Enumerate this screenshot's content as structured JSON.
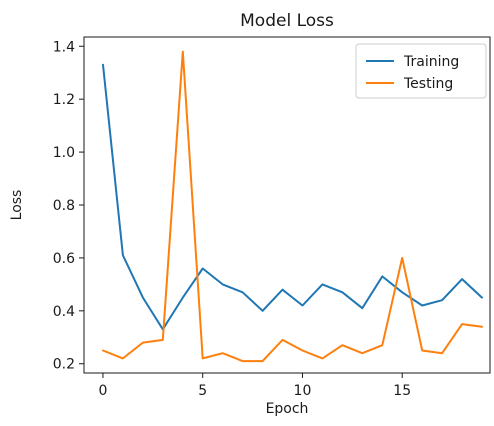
{
  "chart_data": {
    "type": "line",
    "title": "Model Loss",
    "xlabel": "Epoch",
    "ylabel": "Loss",
    "xlim": [
      -0.95,
      19.4
    ],
    "ylim": [
      0.165,
      1.435
    ],
    "xticks": [
      0,
      5,
      10,
      15
    ],
    "yticks": [
      0.2,
      0.4,
      0.6,
      0.8,
      1.0,
      1.2,
      1.4
    ],
    "grid": false,
    "legend": "top-right",
    "x": [
      0,
      1,
      2,
      3,
      4,
      5,
      6,
      7,
      8,
      9,
      10,
      11,
      12,
      13,
      14,
      15,
      16,
      17,
      18,
      19
    ],
    "series": [
      {
        "name": "Training",
        "color": "#1f77b4",
        "values": [
          1.33,
          0.61,
          0.45,
          0.33,
          0.45,
          0.56,
          0.5,
          0.47,
          0.4,
          0.48,
          0.42,
          0.5,
          0.47,
          0.41,
          0.53,
          0.47,
          0.42,
          0.44,
          0.52,
          0.45
        ]
      },
      {
        "name": "Testing",
        "color": "#ff7f0e",
        "values": [
          0.25,
          0.22,
          0.28,
          0.29,
          1.38,
          0.22,
          0.24,
          0.21,
          0.21,
          0.29,
          0.25,
          0.22,
          0.27,
          0.24,
          0.27,
          0.6,
          0.25,
          0.24,
          0.35,
          0.34
        ]
      }
    ]
  }
}
